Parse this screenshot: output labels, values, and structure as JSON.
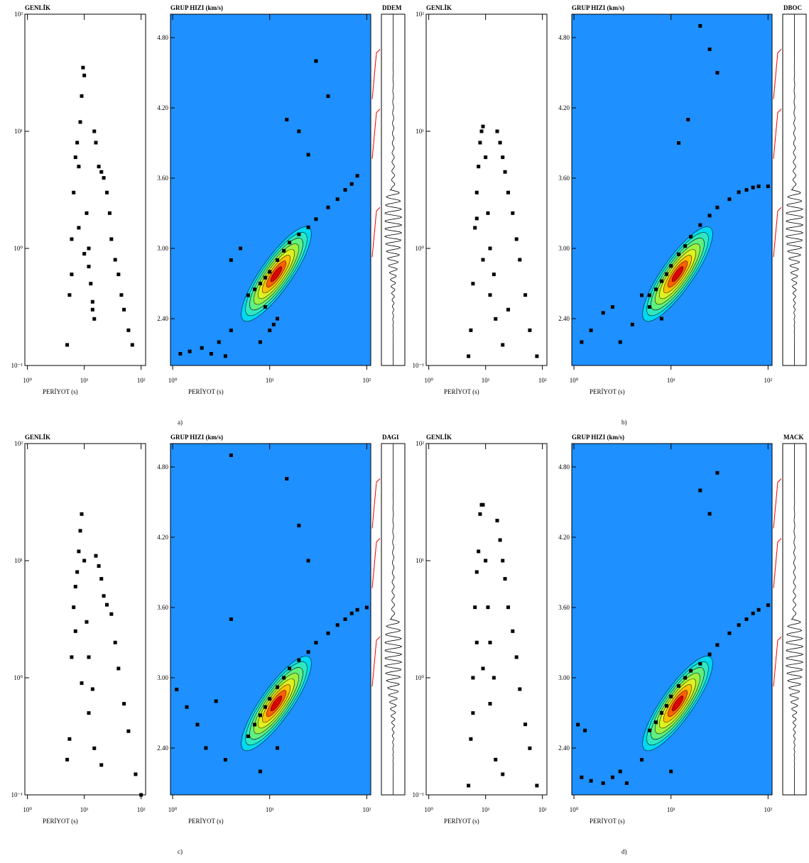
{
  "panel_labels": [
    "a)",
    "b)",
    "c)",
    "d)"
  ],
  "chart_data": [
    {
      "type": "scatter",
      "ylabel": "GENLİK",
      "xlabel": "PERİYOT (s)",
      "xscale": "log",
      "yscale": "log",
      "xlim": [
        0.9,
        120
      ],
      "ylim": [
        0.1,
        100
      ],
      "xticks": [
        {
          "value": 1,
          "label": "10⁰"
        },
        {
          "value": 10,
          "label": "10¹"
        },
        {
          "value": 100,
          "label": "10²"
        }
      ],
      "yticks": [
        {
          "value": 0.1,
          "label": "10⁻¹"
        },
        {
          "value": 1,
          "label": "10⁰"
        },
        {
          "value": 10,
          "label": "10¹"
        },
        {
          "value": 100,
          "label": "10²"
        }
      ],
      "color": "#000000",
      "x": [
        5,
        5.5,
        6,
        6.5,
        7,
        7.5,
        8,
        8.5,
        9,
        9.5,
        10,
        11,
        12,
        13,
        14,
        15,
        16,
        18,
        20,
        22,
        25,
        28,
        30,
        35,
        40,
        45,
        50,
        60,
        70,
        8,
        10,
        12,
        14,
        6,
        15
      ],
      "y": [
        0.15,
        0.4,
        1.2,
        3,
        6,
        8,
        5,
        12,
        20,
        35,
        30,
        2,
        1,
        0.5,
        0.3,
        10,
        8,
        5,
        4.5,
        4,
        3,
        2,
        1.2,
        0.8,
        0.6,
        0.4,
        0.3,
        0.2,
        0.15,
        1.5,
        0.9,
        0.7,
        0.35,
        0.6,
        0.25
      ]
    },
    {
      "type": "scatter",
      "ylabel": "GRUP HIZI (km/s)",
      "xlabel": "PERİYOT (s)",
      "station": "DDEM",
      "xscale": "log",
      "yscale": "linear",
      "xlim": [
        0.95,
        110
      ],
      "ylim": [
        2.0,
        5.0
      ],
      "xticks": [
        {
          "value": 1,
          "label": "10⁰"
        },
        {
          "value": 10,
          "label": "10¹"
        },
        {
          "value": 100,
          "label": "10²"
        }
      ],
      "yticks": [
        {
          "value": 2.4,
          "label": "2.40"
        },
        {
          "value": 3.0,
          "label": "3.00"
        },
        {
          "value": 3.6,
          "label": "3.60"
        },
        {
          "value": 4.2,
          "label": "4.20"
        },
        {
          "value": 4.8,
          "label": "4.80"
        }
      ],
      "color": "#000000",
      "background": "#1e90ff",
      "x": [
        6,
        7,
        8,
        9,
        10,
        12,
        14,
        16,
        20,
        25,
        30,
        40,
        50,
        60,
        70,
        80,
        1.2,
        1.5,
        2,
        2.5,
        3,
        3.5,
        4,
        10,
        12,
        15,
        20,
        25,
        8,
        9,
        11,
        5,
        4,
        30,
        40
      ],
      "y": [
        2.6,
        2.65,
        2.7,
        2.75,
        2.8,
        2.9,
        2.98,
        3.05,
        3.12,
        3.18,
        3.25,
        3.35,
        3.42,
        3.5,
        3.55,
        3.62,
        2.1,
        2.12,
        2.15,
        2.1,
        2.2,
        2.08,
        2.3,
        2.3,
        2.4,
        4.1,
        4.0,
        3.8,
        2.2,
        2.5,
        2.35,
        3.0,
        2.9,
        4.6,
        4.3
      ]
    },
    {
      "type": "scatter",
      "ylabel": "GENLİK",
      "xlabel": "PERİYOT (s)",
      "xscale": "log",
      "yscale": "log",
      "xlim": [
        0.9,
        120
      ],
      "ylim": [
        0.1,
        100
      ],
      "xticks": [
        {
          "value": 1,
          "label": "10⁰"
        },
        {
          "value": 10,
          "label": "10¹"
        },
        {
          "value": 100,
          "label": "10²"
        }
      ],
      "yticks": [
        {
          "value": 0.1,
          "label": "10⁻¹"
        },
        {
          "value": 1,
          "label": "10⁰"
        },
        {
          "value": 10,
          "label": "10¹"
        },
        {
          "value": 100,
          "label": "10²"
        }
      ],
      "color": "#000000",
      "x": [
        5,
        5.5,
        6,
        6.5,
        7,
        7.5,
        8,
        8.5,
        9,
        10,
        11,
        12,
        14,
        16,
        18,
        20,
        22,
        25,
        30,
        35,
        40,
        50,
        60,
        80,
        9,
        12,
        15,
        20,
        7,
        25
      ],
      "y": [
        0.12,
        0.2,
        0.5,
        1.5,
        3,
        5,
        8,
        10,
        11,
        6,
        2,
        1,
        0.6,
        10,
        8,
        6,
        4.5,
        3,
        2,
        1.2,
        0.8,
        0.4,
        0.2,
        0.12,
        0.8,
        0.4,
        0.25,
        0.15,
        1.8,
        0.3
      ]
    },
    {
      "type": "scatter",
      "ylabel": "GRUP HIZI (km/s)",
      "xlabel": "PERİYOT (s)",
      "station": "DBOC",
      "xscale": "log",
      "yscale": "linear",
      "xlim": [
        0.95,
        110
      ],
      "ylim": [
        2.0,
        5.0
      ],
      "xticks": [
        {
          "value": 1,
          "label": "10⁰"
        },
        {
          "value": 10,
          "label": "10¹"
        },
        {
          "value": 100,
          "label": "10²"
        }
      ],
      "yticks": [
        {
          "value": 2.4,
          "label": "2.40"
        },
        {
          "value": 3.0,
          "label": "3.00"
        },
        {
          "value": 3.6,
          "label": "3.60"
        },
        {
          "value": 4.2,
          "label": "4.20"
        },
        {
          "value": 4.8,
          "label": "4.80"
        }
      ],
      "color": "#000000",
      "background": "#1e90ff",
      "x": [
        6,
        7,
        8,
        9,
        10,
        12,
        14,
        16,
        20,
        25,
        30,
        40,
        50,
        60,
        70,
        80,
        100,
        1.2,
        1.5,
        2,
        2.5,
        3,
        4,
        5,
        6,
        20,
        25,
        30,
        15,
        12,
        8
      ],
      "y": [
        2.6,
        2.65,
        2.72,
        2.78,
        2.85,
        2.95,
        3.02,
        3.1,
        3.2,
        3.28,
        3.35,
        3.42,
        3.48,
        3.5,
        3.52,
        3.53,
        3.53,
        2.2,
        2.3,
        2.45,
        2.5,
        2.2,
        2.35,
        2.6,
        2.5,
        4.9,
        4.7,
        4.5,
        4.1,
        3.9,
        2.4
      ]
    },
    {
      "type": "scatter",
      "ylabel": "GENLİK",
      "xlabel": "PERİYOT (s)",
      "xscale": "log",
      "yscale": "log",
      "xlim": [
        0.9,
        120
      ],
      "ylim": [
        0.1,
        100
      ],
      "xticks": [
        {
          "value": 1,
          "label": "10⁰"
        },
        {
          "value": 10,
          "label": "10¹"
        },
        {
          "value": 100,
          "label": "10²"
        }
      ],
      "yticks": [
        {
          "value": 0.1,
          "label": "10⁻¹"
        },
        {
          "value": 1,
          "label": "10⁰"
        },
        {
          "value": 10,
          "label": "10¹"
        },
        {
          "value": 100,
          "label": "10²"
        }
      ],
      "color": "#000000",
      "x": [
        5,
        5.5,
        6,
        6.5,
        7,
        7.5,
        8,
        8.5,
        9,
        10,
        11,
        12,
        14,
        16,
        18,
        20,
        22,
        25,
        30,
        35,
        40,
        50,
        60,
        80,
        100,
        9,
        12,
        15,
        7,
        20
      ],
      "y": [
        0.2,
        0.3,
        1.5,
        4,
        6,
        8,
        12,
        18,
        25,
        10,
        3,
        1.5,
        0.8,
        11,
        9,
        7,
        5,
        4.2,
        3.5,
        2,
        1.2,
        0.6,
        0.35,
        0.15,
        0.1,
        0.9,
        0.5,
        0.25,
        2.5,
        0.18
      ]
    },
    {
      "type": "scatter",
      "ylabel": "GRUP HIZI (km/s)",
      "xlabel": "PERİYOT (s)",
      "station": "DAGI",
      "xscale": "log",
      "yscale": "linear",
      "xlim": [
        0.95,
        110
      ],
      "ylim": [
        2.0,
        5.0
      ],
      "xticks": [
        {
          "value": 1,
          "label": "10⁰"
        },
        {
          "value": 10,
          "label": "10¹"
        },
        {
          "value": 100,
          "label": "10²"
        }
      ],
      "yticks": [
        {
          "value": 2.4,
          "label": "2.40"
        },
        {
          "value": 3.0,
          "label": "3.00"
        },
        {
          "value": 3.6,
          "label": "3.60"
        },
        {
          "value": 4.2,
          "label": "4.20"
        },
        {
          "value": 4.8,
          "label": "4.80"
        }
      ],
      "color": "#000000",
      "background": "#1e90ff",
      "x": [
        6,
        7,
        8,
        9,
        10,
        12,
        14,
        16,
        20,
        25,
        30,
        40,
        50,
        60,
        70,
        80,
        100,
        1.1,
        1.4,
        1.8,
        2.2,
        2.8,
        3.5,
        4,
        4,
        15,
        20,
        25,
        8,
        12
      ],
      "y": [
        2.5,
        2.6,
        2.68,
        2.75,
        2.82,
        2.92,
        3.0,
        3.08,
        3.15,
        3.22,
        3.3,
        3.38,
        3.45,
        3.5,
        3.55,
        3.58,
        3.6,
        2.9,
        2.75,
        2.6,
        2.4,
        2.8,
        2.3,
        4.9,
        3.5,
        4.7,
        4.3,
        4.0,
        2.2,
        2.4
      ]
    },
    {
      "type": "scatter",
      "ylabel": "GENLİK",
      "xlabel": "PERİYOT (s)",
      "xscale": "log",
      "yscale": "log",
      "xlim": [
        0.9,
        120
      ],
      "ylim": [
        0.1,
        100
      ],
      "xticks": [
        {
          "value": 1,
          "label": "10⁰"
        },
        {
          "value": 10,
          "label": "10¹"
        },
        {
          "value": 100,
          "label": "10²"
        }
      ],
      "yticks": [
        {
          "value": 0.1,
          "label": "10⁻¹"
        },
        {
          "value": 1,
          "label": "10⁰"
        },
        {
          "value": 10,
          "label": "10¹"
        },
        {
          "value": 100,
          "label": "10²"
        }
      ],
      "color": "#000000",
      "x": [
        5,
        5.5,
        6,
        6.5,
        7,
        7.5,
        8,
        8.5,
        9,
        10,
        11,
        12,
        14,
        16,
        18,
        20,
        22,
        25,
        30,
        35,
        40,
        50,
        60,
        80,
        9,
        12,
        15,
        7,
        20,
        6
      ],
      "y": [
        0.12,
        0.3,
        1,
        4,
        8,
        12,
        25,
        30,
        30,
        10,
        4,
        2,
        1,
        22,
        15,
        10,
        7,
        4,
        2.5,
        1.5,
        0.8,
        0.4,
        0.25,
        0.12,
        1.2,
        0.6,
        0.2,
        2,
        0.15,
        0.5
      ]
    },
    {
      "type": "scatter",
      "ylabel": "GRUP HIZI (km/s)",
      "xlabel": "PERİYOT (s)",
      "station": "MACK",
      "xscale": "log",
      "yscale": "linear",
      "xlim": [
        0.95,
        110
      ],
      "ylim": [
        2.0,
        5.0
      ],
      "xticks": [
        {
          "value": 1,
          "label": "10⁰"
        },
        {
          "value": 10,
          "label": "10¹"
        },
        {
          "value": 100,
          "label": "10²"
        }
      ],
      "yticks": [
        {
          "value": 2.4,
          "label": "2.40"
        },
        {
          "value": 3.0,
          "label": "3.00"
        },
        {
          "value": 3.6,
          "label": "3.60"
        },
        {
          "value": 4.2,
          "label": "4.20"
        },
        {
          "value": 4.8,
          "label": "4.80"
        }
      ],
      "color": "#000000",
      "background": "#1e90ff",
      "x": [
        6,
        7,
        8,
        9,
        10,
        12,
        14,
        16,
        20,
        25,
        30,
        40,
        50,
        60,
        70,
        80,
        100,
        1.2,
        1.5,
        2,
        2.5,
        3,
        3.5,
        1.1,
        1.3,
        20,
        25,
        30,
        5,
        10
      ],
      "y": [
        2.55,
        2.62,
        2.7,
        2.76,
        2.84,
        2.93,
        3.0,
        3.06,
        3.12,
        3.2,
        3.28,
        3.38,
        3.45,
        3.5,
        3.55,
        3.58,
        3.62,
        2.15,
        2.12,
        2.1,
        2.15,
        2.2,
        2.1,
        2.6,
        2.55,
        4.6,
        4.4,
        4.75,
        2.3,
        2.2
      ]
    }
  ]
}
